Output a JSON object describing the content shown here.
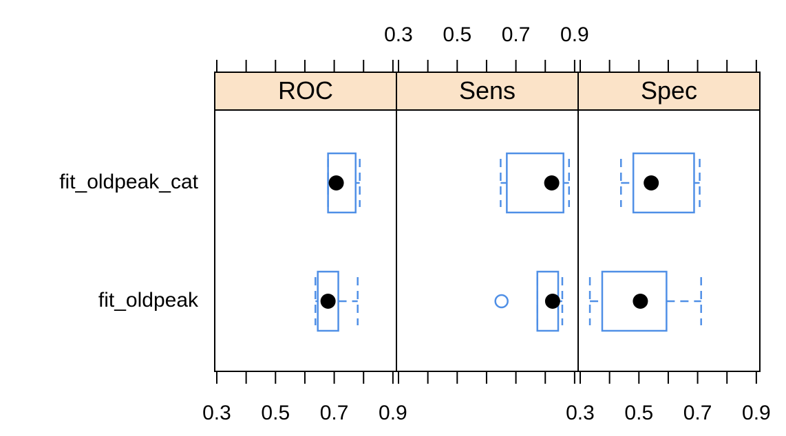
{
  "chart_data": {
    "type": "box",
    "categories": [
      "fit_oldpeak_cat",
      "fit_oldpeak"
    ],
    "panels": [
      {
        "name": "ROC",
        "boxes": [
          {
            "min": 0.679,
            "q1": 0.679,
            "median": 0.707,
            "q3": 0.773,
            "max": 0.787,
            "outliers": []
          },
          {
            "min": 0.636,
            "q1": 0.644,
            "median": 0.679,
            "q3": 0.714,
            "max": 0.78,
            "outliers": []
          }
        ]
      },
      {
        "name": "Sens",
        "boxes": [
          {
            "min": 0.648,
            "q1": 0.669,
            "median": 0.822,
            "q3": 0.862,
            "max": 0.881,
            "outliers": []
          },
          {
            "min": 0.773,
            "q1": 0.773,
            "median": 0.825,
            "q3": 0.844,
            "max": 0.858,
            "outliers": [
              0.651
            ]
          }
        ]
      },
      {
        "name": "Spec",
        "boxes": [
          {
            "min": 0.439,
            "q1": 0.481,
            "median": 0.542,
            "q3": 0.688,
            "max": 0.707,
            "outliers": []
          },
          {
            "min": 0.333,
            "q1": 0.375,
            "median": 0.505,
            "q3": 0.594,
            "max": 0.712,
            "outliers": []
          }
        ]
      }
    ],
    "xlim": [
      0.293,
      0.912
    ],
    "xticks": [
      0.3,
      0.5,
      0.7,
      0.9
    ],
    "minor_xticks": [
      0.4,
      0.6,
      0.8
    ],
    "tick_label_sides": [
      "bottom",
      "top",
      "bottom"
    ],
    "box_color": "#4f8fe6",
    "median_color": "#000000",
    "strip_color": "#fbe3c8"
  }
}
